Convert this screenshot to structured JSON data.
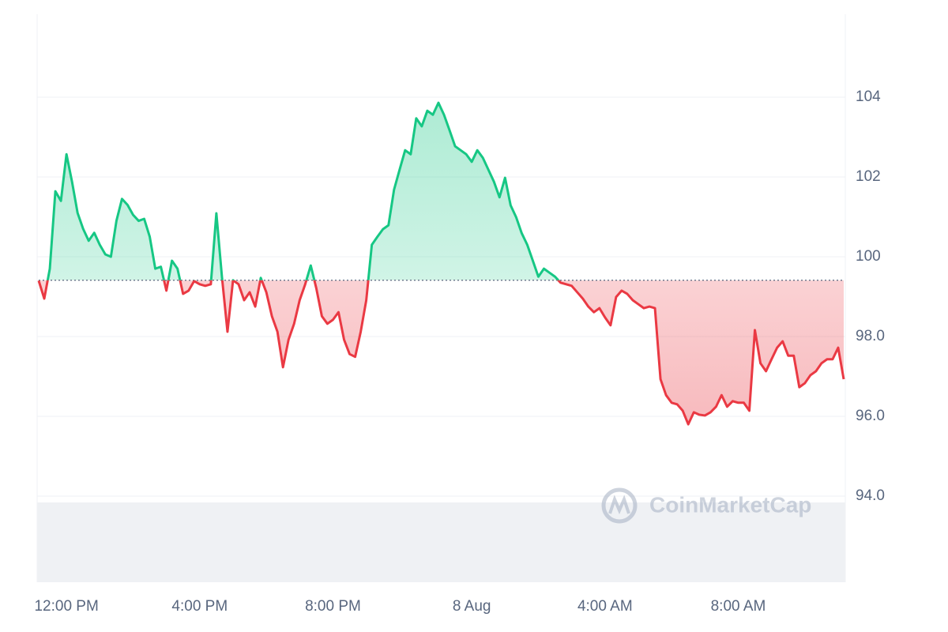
{
  "chart_data": {
    "type": "baseline-line",
    "watermark": "CoinMarketCap",
    "categories": [
      null,
      null,
      null,
      null,
      null,
      "12:00 PM",
      null,
      null,
      null,
      null,
      null,
      null,
      null,
      null,
      null,
      null,
      null,
      null,
      null,
      null,
      null,
      null,
      null,
      null,
      null,
      null,
      null,
      null,
      null,
      "4:00 PM",
      null,
      null,
      null,
      null,
      null,
      null,
      null,
      null,
      null,
      null,
      null,
      null,
      null,
      null,
      null,
      null,
      null,
      null,
      null,
      null,
      null,
      null,
      null,
      "8:00 PM",
      null,
      null,
      null,
      null,
      null,
      null,
      null,
      null,
      null,
      null,
      null,
      null,
      null,
      null,
      null,
      null,
      null,
      null,
      null,
      null,
      null,
      null,
      null,
      null,
      "8 Aug",
      null,
      null,
      null,
      null,
      null,
      null,
      null,
      null,
      null,
      null,
      null,
      null,
      null,
      null,
      null,
      null,
      null,
      null,
      null,
      null,
      null,
      null,
      null,
      "4:00 AM",
      null,
      null,
      null,
      null,
      null,
      null,
      null,
      null,
      null,
      null,
      null,
      null,
      null,
      null,
      null,
      null,
      null,
      null,
      null,
      null,
      null,
      null,
      null,
      "8:00 AM",
      null,
      null,
      null,
      null,
      null,
      null,
      null,
      null,
      null,
      null,
      null,
      null,
      null,
      null,
      null,
      null,
      null,
      null,
      null
    ],
    "values": [
      99.4,
      98.95,
      99.7,
      101.64,
      101.4,
      102.57,
      101.88,
      101.1,
      100.7,
      100.4,
      100.6,
      100.3,
      100.06,
      100,
      100.9,
      101.45,
      101.3,
      101.05,
      100.9,
      100.95,
      100.5,
      99.7,
      99.75,
      99.15,
      99.9,
      99.7,
      99.07,
      99.15,
      99.39,
      99.31,
      99.27,
      99.31,
      101.09,
      99.5,
      98.12,
      99.41,
      99.31,
      98.91,
      99.11,
      98.75,
      99.47,
      99.11,
      98.51,
      98.12,
      97.23,
      97.92,
      98.32,
      98.91,
      99.31,
      99.78,
      99.21,
      98.51,
      98.32,
      98.42,
      98.61,
      97.92,
      97.56,
      97.49,
      98.12,
      98.91,
      100.3,
      100.5,
      100.69,
      100.79,
      101.68,
      102.18,
      102.67,
      102.57,
      103.47,
      103.27,
      103.66,
      103.56,
      103.86,
      103.56,
      103.17,
      102.77,
      102.67,
      102.57,
      102.38,
      102.67,
      102.48,
      102.18,
      101.88,
      101.49,
      101.98,
      101.29,
      100.99,
      100.59,
      100.3,
      99.9,
      99.5,
      99.7,
      99.6,
      99.5,
      99.35,
      99.31,
      99.27,
      99.11,
      98.95,
      98.75,
      98.61,
      98.71,
      98.48,
      98.28,
      98.99,
      99.15,
      99.07,
      98.91,
      98.81,
      98.71,
      98.75,
      98.71,
      96.93,
      96.53,
      96.34,
      96.3,
      96.14,
      95.8,
      96.1,
      96.04,
      96.02,
      96.1,
      96.24,
      96.53,
      96.24,
      96.38,
      96.34,
      96.34,
      96.14,
      98.16,
      97.33,
      97.13,
      97.43,
      97.72,
      97.88,
      97.52,
      97.52,
      96.73,
      96.83,
      97.03,
      97.13,
      97.33,
      97.43,
      97.43,
      97.72,
      96.93
    ],
    "baseline": 99.41,
    "up_color": "#16c784",
    "down_color": "#ea3943",
    "ylim": [
      91.84,
      106.08
    ],
    "yticks": [
      {
        "value": 94,
        "label": "94.0"
      },
      {
        "value": 96,
        "label": "96.0"
      },
      {
        "value": 98,
        "label": "98.0"
      },
      100,
      102,
      104
    ],
    "grid": true
  }
}
